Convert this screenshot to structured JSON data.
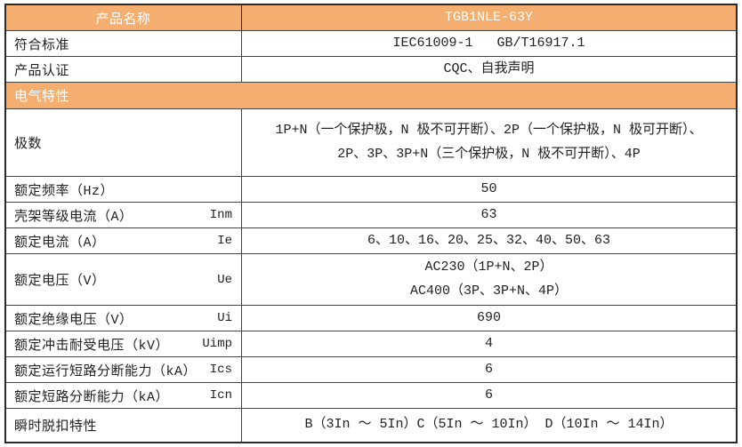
{
  "colors": {
    "header_bg": "#f4ae70",
    "header_text": "#ffffff",
    "grid_line": "#434343",
    "body_text": "#212121"
  },
  "table": {
    "header": {
      "label": "产品名称",
      "value": "TGB1NLE-63Y"
    },
    "section": {
      "label": "电气特性"
    },
    "rows": [
      {
        "label": "符合标准",
        "symbol": "",
        "value": "IEC61009-1   GB/T16917.1"
      },
      {
        "label": "产品认证",
        "symbol": "",
        "value": "CQC、自我声明"
      },
      {
        "label": "极数",
        "symbol": "",
        "value_line1": "1P+N（一个保护极，N 极不可开断）、2P（一个保护极，N 极可开断）、",
        "value_line2": "2P、3P、3P+N（三个保护极，N 极不可开断）、4P"
      },
      {
        "label": "额定频率（Hz）",
        "symbol": "",
        "value": "50"
      },
      {
        "label": "壳架等级电流（A）",
        "symbol": "Inm",
        "value": "63"
      },
      {
        "label": "额定电流（A）",
        "symbol": "Ie",
        "value": "6、10、16、20、25、32、40、50、63"
      },
      {
        "label": "额定电压（V）",
        "symbol": "Ue",
        "value_line1": "AC230（1P+N、2P）",
        "value_line2": "AC400（3P、3P+N、4P）"
      },
      {
        "label": "额定绝缘电压（V）",
        "symbol": "Ui",
        "value": "690"
      },
      {
        "label": "额定冲击耐受电压（kV）",
        "symbol": "Uimp",
        "value": "4"
      },
      {
        "label": "额定运行短路分断能力（kA）",
        "symbol": "Ics",
        "value": "6"
      },
      {
        "label": "额定短路分断能力（kA）",
        "symbol": "Icn",
        "value": "6"
      },
      {
        "label": "瞬时脱扣特性",
        "symbol": "",
        "value": "B（3In ～ 5In）C（5In ～ 10In） D（10In ～ 14In）"
      }
    ]
  }
}
